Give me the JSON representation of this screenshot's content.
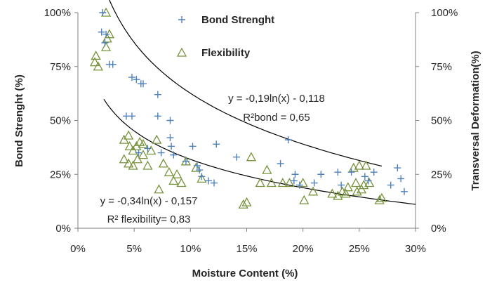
{
  "chart_data": {
    "type": "scatter",
    "title": "",
    "xlabel": "Moisture Content (%)",
    "ylabel": "Bond Strenght (%)",
    "y2label": "Transversal Deformation(%)",
    "xlim": [
      0,
      30
    ],
    "ylim": [
      0,
      100
    ],
    "y2lim": [
      0,
      100
    ],
    "x_ticks": [
      "0%",
      "5%",
      "10%",
      "15%",
      "20%",
      "25%",
      "30%"
    ],
    "y_ticks": [
      "0%",
      "25%",
      "50%",
      "75%",
      "100%"
    ],
    "y2_ticks": [
      "0%",
      "25%",
      "50%",
      "75%",
      "100%"
    ],
    "grid": false,
    "legend_position": "top-center",
    "colors": {
      "bond": "#4F81BD",
      "flex": "#77933C",
      "trend": "#000000",
      "axis": "#808080"
    },
    "series": [
      {
        "name": "Bond Strenght",
        "marker": "plus",
        "points": [
          [
            2.2,
            100
          ],
          [
            2.1,
            91
          ],
          [
            2.5,
            90
          ],
          [
            2.4,
            86
          ],
          [
            2.8,
            76
          ],
          [
            3.1,
            76
          ],
          [
            4.3,
            52
          ],
          [
            4.8,
            52
          ],
          [
            4.8,
            70
          ],
          [
            5.2,
            69
          ],
          [
            5.6,
            67
          ],
          [
            5.8,
            67
          ],
          [
            7.1,
            62
          ],
          [
            7.1,
            52
          ],
          [
            8.2,
            50
          ],
          [
            8.2,
            42
          ],
          [
            8.3,
            38
          ],
          [
            7.4,
            35
          ],
          [
            5.4,
            35
          ],
          [
            6.2,
            37
          ],
          [
            8.5,
            34
          ],
          [
            9.6,
            31
          ],
          [
            10.2,
            38
          ],
          [
            10.6,
            29
          ],
          [
            10.8,
            27
          ],
          [
            11,
            24
          ],
          [
            11.6,
            22
          ],
          [
            12.1,
            21
          ],
          [
            12.3,
            39
          ],
          [
            14.1,
            33
          ],
          [
            18,
            30
          ],
          [
            18.7,
            41
          ],
          [
            19.3,
            25
          ],
          [
            19.2,
            22
          ],
          [
            19.7,
            20
          ],
          [
            21,
            21
          ],
          [
            21.6,
            25
          ],
          [
            23.1,
            26
          ],
          [
            23.4,
            20
          ],
          [
            24.3,
            26
          ],
          [
            25.5,
            24
          ],
          [
            26.3,
            26
          ],
          [
            25.8,
            22
          ],
          [
            27.8,
            20
          ],
          [
            28.4,
            28
          ],
          [
            28.7,
            23
          ],
          [
            29,
            17
          ]
        ]
      },
      {
        "name": "Flexibility",
        "marker": "triangle",
        "points": [
          [
            1.5,
            77
          ],
          [
            1.6,
            80
          ],
          [
            1.8,
            75
          ],
          [
            2.5,
            84
          ],
          [
            2.6,
            88
          ],
          [
            2.8,
            90
          ],
          [
            2.5,
            100
          ],
          [
            4.1,
            41
          ],
          [
            4.1,
            32
          ],
          [
            4.5,
            30
          ],
          [
            4.5,
            43
          ],
          [
            4.6,
            38
          ],
          [
            4.9,
            36
          ],
          [
            4.9,
            29
          ],
          [
            5.2,
            38
          ],
          [
            5.3,
            32
          ],
          [
            5.5,
            40
          ],
          [
            5.8,
            34
          ],
          [
            5.8,
            39
          ],
          [
            6.2,
            29
          ],
          [
            6.5,
            36
          ],
          [
            7,
            41
          ],
          [
            7.2,
            18
          ],
          [
            7.6,
            30
          ],
          [
            8.1,
            26
          ],
          [
            8.5,
            22
          ],
          [
            8.8,
            25
          ],
          [
            9.2,
            21
          ],
          [
            9.6,
            31
          ],
          [
            10.5,
            28
          ],
          [
            11,
            23
          ],
          [
            14.7,
            11
          ],
          [
            15,
            12
          ],
          [
            15.4,
            33
          ],
          [
            16.2,
            21
          ],
          [
            16.8,
            27
          ],
          [
            17.2,
            21
          ],
          [
            18.2,
            21
          ],
          [
            18.8,
            21
          ],
          [
            20,
            21
          ],
          [
            20.1,
            13
          ],
          [
            20.9,
            17
          ],
          [
            22.6,
            16
          ],
          [
            23.1,
            15
          ],
          [
            23.5,
            17
          ],
          [
            23.8,
            16
          ],
          [
            24,
            19
          ],
          [
            24.5,
            28
          ],
          [
            24.7,
            21
          ],
          [
            24.8,
            17
          ],
          [
            25,
            29
          ],
          [
            25.2,
            18
          ],
          [
            25.4,
            20
          ],
          [
            25.6,
            29
          ],
          [
            25.9,
            21
          ],
          [
            26.8,
            13
          ],
          [
            27,
            14
          ]
        ]
      }
    ],
    "trendlines": [
      {
        "label_line1": "y = -0,19ln(x) - 0,118",
        "label_line2": "R²bond = 0,65",
        "equation": "y = -0.19ln(x) - 0.118",
        "x_range": [
          2.3,
          30
        ]
      },
      {
        "label_line1": "y = -0,34ln(x) - 0,157",
        "label_line2": "R² flexibility= 0,83",
        "equation": "y = -0.34ln(x) - 0.157",
        "x_range": [
          1.6,
          27
        ]
      }
    ]
  }
}
